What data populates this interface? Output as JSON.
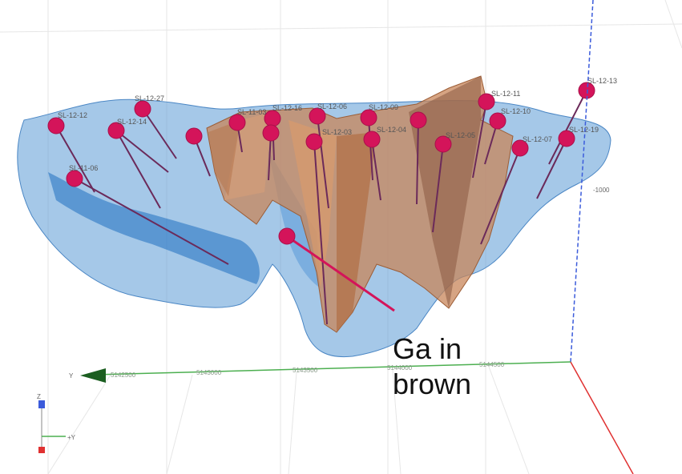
{
  "annotation": {
    "line1": "Ga in",
    "line2": "brown"
  },
  "holes": [
    "SL-12-12",
    "SL-12-27",
    "SL-11-06",
    "SL-12-14",
    "SL-12-16",
    "SL-12-06",
    "SL-12-09",
    "SL-12-11",
    "SL-12-10",
    "SL-12-13",
    "SL-12-19",
    "SL-11-03",
    "SL-12-03",
    "SL-12-04",
    "SL-12-05",
    "SL-12-07"
  ],
  "axes": {
    "y_axis_label": "Y",
    "y_ticks": [
      "5142500",
      "5143000",
      "5143500",
      "5144000",
      "5144500"
    ],
    "elevation_tick": "-1000",
    "gizmo": {
      "z": "Z",
      "y": "+Y"
    }
  },
  "colors": {
    "blue_body": "#5b9ad6",
    "brown_body": "#c8855a",
    "drillhole": "#6b2a5a",
    "collar": "#d4145a",
    "callout": "#d4145a",
    "y_axis": "#4caf50",
    "z_axis": "#3b5bdb",
    "x_axis": "#e03131"
  }
}
